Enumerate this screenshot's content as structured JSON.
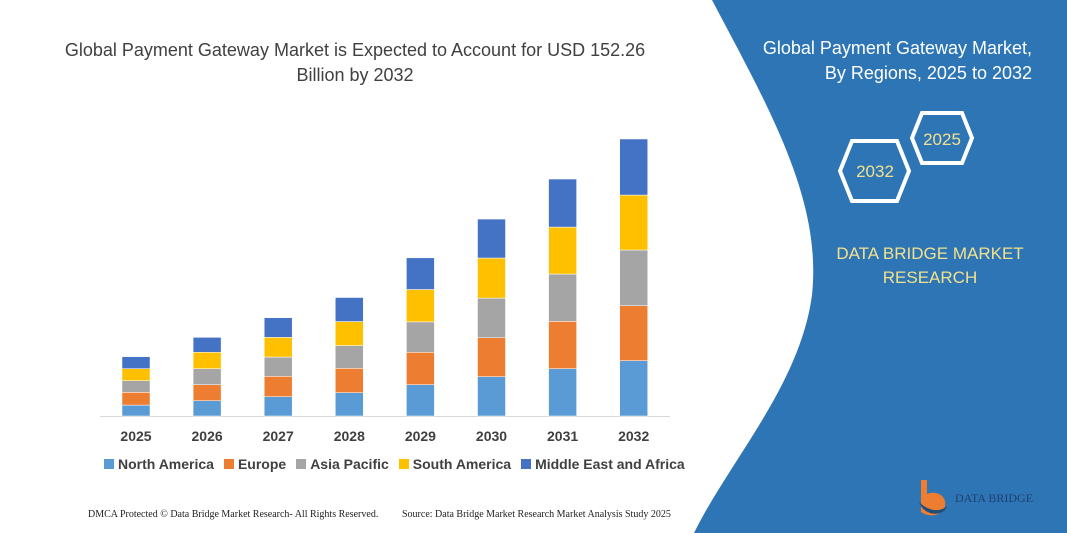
{
  "title": "Global Payment Gateway Market is Expected to Account for USD 152.26 Billion by 2032",
  "side_panel": {
    "title_line1": "Global Payment Gateway Market,",
    "title_line2": "By Regions, 2025 to 2032",
    "hex_start": "2025",
    "hex_end": "2032",
    "brand": "DATA BRIDGE MARKET RESEARCH",
    "logo_text": "DATA BRIDGE",
    "panel_color": "#2e75b6"
  },
  "footer": {
    "left": "DMCA Protected © Data Bridge Market Research- All Rights Reserved.",
    "right": "Source: Data Bridge Market Research Market Analysis Study 2025"
  },
  "chart_data": {
    "type": "bar",
    "stacked": true,
    "title": "Global Payment Gateway Market is Expected to Account for USD 152.26 Billion by 2032",
    "xlabel": "",
    "ylabel": "",
    "grid": false,
    "legend_position": "bottom",
    "categories": [
      "2025",
      "2026",
      "2027",
      "2028",
      "2029",
      "2030",
      "2031",
      "2032"
    ],
    "series": [
      {
        "name": "North America",
        "color": "#5b9bd5",
        "values": [
          6.0,
          8.4,
          10.6,
          12.8,
          17.2,
          21.6,
          26.0,
          30.4
        ]
      },
      {
        "name": "Europe",
        "color": "#ed7d31",
        "values": [
          7.0,
          8.8,
          11.2,
          13.4,
          17.8,
          21.4,
          26.0,
          30.2
        ]
      },
      {
        "name": "Asia Pacific",
        "color": "#a5a5a5",
        "values": [
          6.4,
          8.8,
          10.6,
          12.5,
          16.7,
          21.8,
          26.0,
          30.6
        ]
      },
      {
        "name": "South America",
        "color": "#ffc000",
        "values": [
          6.6,
          9.0,
          10.8,
          13.2,
          17.8,
          22.0,
          25.8,
          30.2
        ]
      },
      {
        "name": "Middle East and Africa",
        "color": "#4472c4",
        "values": [
          6.6,
          8.2,
          10.8,
          13.2,
          17.4,
          21.4,
          26.4,
          30.8
        ]
      }
    ]
  }
}
